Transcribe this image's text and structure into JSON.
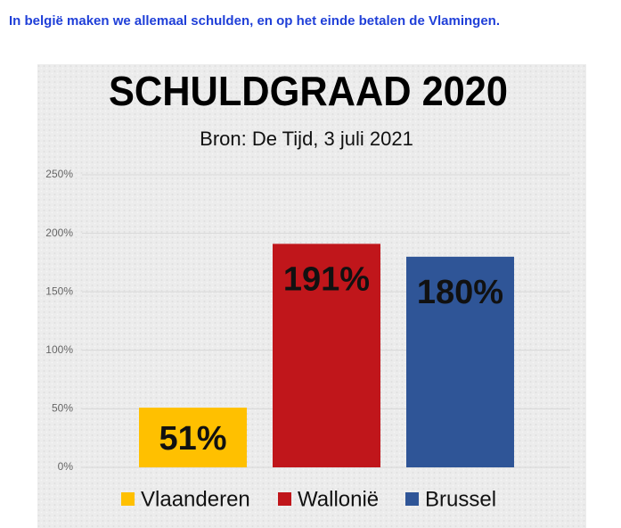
{
  "header": "In belgië maken we allemaal schulden, en op het einde betalen de Vlamingen.",
  "chart_data": {
    "type": "bar",
    "title": "SCHULDGRAAD 2020",
    "subtitle": "Bron: De Tijd, 3 juli 2021",
    "categories": [
      "Vlaanderen",
      "Wallonië",
      "Brussel"
    ],
    "values": [
      51,
      191,
      180
    ],
    "value_labels": [
      "51%",
      "191%",
      "180%"
    ],
    "colors": [
      "#ffc000",
      "#c0161b",
      "#2f5597"
    ],
    "ylim": [
      0,
      250
    ],
    "yticks": [
      {
        "value": 0,
        "label": "0%"
      },
      {
        "value": 50,
        "label": "50%"
      },
      {
        "value": 100,
        "label": "100%"
      },
      {
        "value": 150,
        "label": "150%"
      },
      {
        "value": 200,
        "label": "200%"
      },
      {
        "value": 250,
        "label": "250%"
      }
    ],
    "grid": true,
    "legend": "bottom"
  }
}
